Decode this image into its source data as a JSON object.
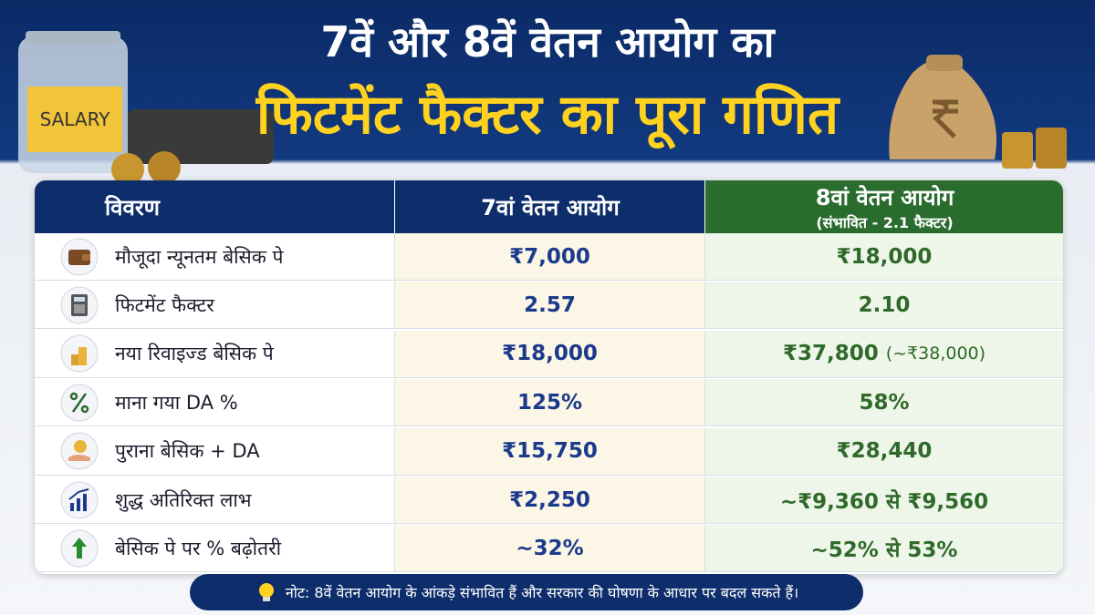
{
  "header": {
    "title_line1": "7वें और 8वें वेतन आयोग का",
    "title_line2": "फिटमेंट फैक्टर का पूरा गणित",
    "jar_label": "SALARY"
  },
  "table": {
    "columns": [
      "विवरण",
      "7वां वेतन आयोग",
      "8वां वेतन आयोग"
    ],
    "column_note": "(संभावित - 2.1 फैक्टर)",
    "rows": [
      {
        "label": "मौजूदा न्यूनतम बेसिक पे",
        "pay7": "₹7,000",
        "pay8": "₹18,000"
      },
      {
        "label": "फिटमेंट फैक्टर",
        "pay7": "2.57",
        "pay8": "2.10"
      },
      {
        "label": "नया रिवाइज्ड बेसिक पे",
        "pay7": "₹18,000",
        "pay8": "₹37,800",
        "pay8_note": "(~₹38,000)"
      },
      {
        "label": "माना गया DA %",
        "pay7": "125%",
        "pay8": "58%"
      },
      {
        "label": "पुराना बेसिक + DA",
        "pay7": "₹15,750",
        "pay8": "₹28,440"
      },
      {
        "label": "शुद्ध अतिरिक्त लाभ",
        "pay7": "₹2,250",
        "pay8": "~₹9,360 से ₹9,560"
      },
      {
        "label": "बेसिक पे पर % बढ़ोतरी",
        "pay7": "~32%",
        "pay8": "~52% से 53%"
      }
    ]
  },
  "note": "नोट: 8वें वेतन आयोग के आंकड़े संभावित हैं और सरकार की घोषणा के आधार पर बदल सकते हैं।"
}
